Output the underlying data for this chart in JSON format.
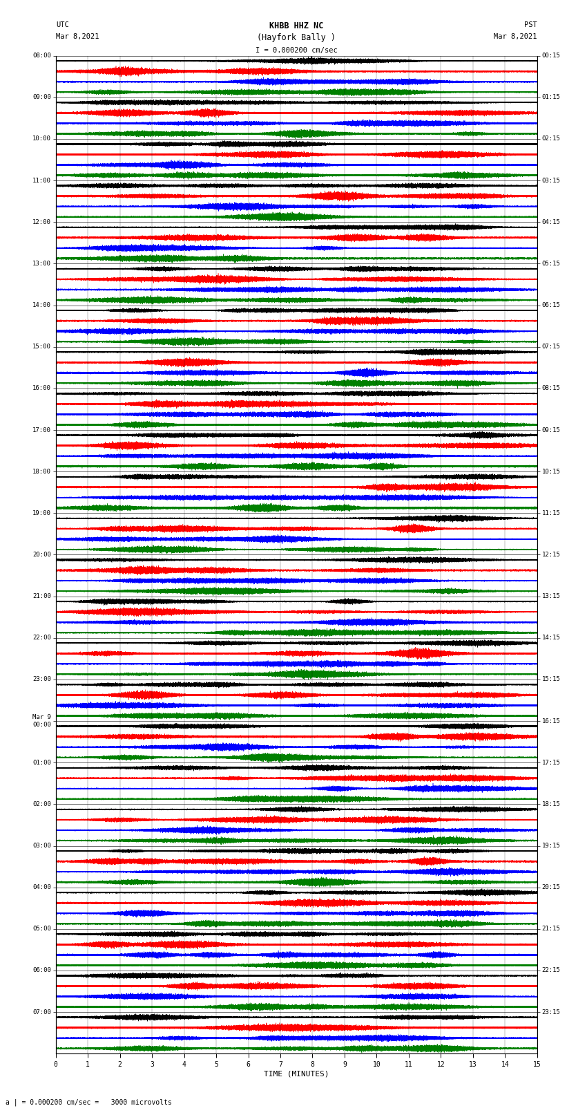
{
  "title_line1": "KHBB HHZ NC",
  "title_line2": "(Hayfork Bally )",
  "scale_label": "I = 0.000200 cm/sec",
  "utc_label": "UTC",
  "utc_date": "Mar 8,2021",
  "pst_label": "PST",
  "pst_date": "Mar 8,2021",
  "xlabel": "TIME (MINUTES)",
  "footnote": "a | = 0.000200 cm/sec =   3000 microvolts",
  "left_times_utc": [
    "08:00",
    "09:00",
    "10:00",
    "11:00",
    "12:00",
    "13:00",
    "14:00",
    "15:00",
    "16:00",
    "17:00",
    "18:00",
    "19:00",
    "20:00",
    "21:00",
    "22:00",
    "23:00",
    "Mar 9\n00:00",
    "01:00",
    "02:00",
    "03:00",
    "04:00",
    "05:00",
    "06:00",
    "07:00"
  ],
  "right_times_pst": [
    "00:15",
    "01:15",
    "02:15",
    "03:15",
    "04:15",
    "05:15",
    "06:15",
    "07:15",
    "08:15",
    "09:15",
    "10:15",
    "11:15",
    "12:15",
    "13:15",
    "14:15",
    "15:15",
    "16:15",
    "17:15",
    "18:15",
    "19:15",
    "20:15",
    "21:15",
    "22:15",
    "23:15"
  ],
  "n_rows": 24,
  "traces_per_row": 4,
  "trace_colors": [
    "#000000",
    "#ff0000",
    "#0000ff",
    "#008000"
  ],
  "duration_minutes": 15,
  "bg_color": "white",
  "fig_width": 8.5,
  "fig_height": 16.13,
  "sample_rate": 100,
  "noise_amps": [
    0.3,
    0.4,
    0.35,
    0.38
  ],
  "lw": 0.35
}
